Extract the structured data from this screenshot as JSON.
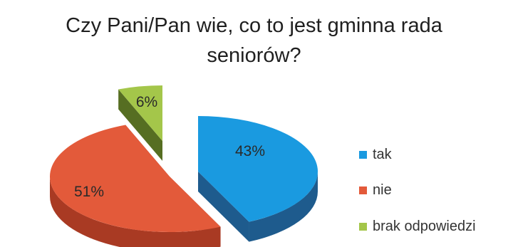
{
  "chart_data": {
    "type": "pie",
    "title": "Czy Pani/Pan wie, co to jest gminna rada seniorów?",
    "title_lines": [
      "Czy Pani/Pan wie, co to jest gminna rada",
      "seniorów?"
    ],
    "slices": [
      {
        "label": "tak",
        "value": 43,
        "display": "43%",
        "color": "#1a9ae0",
        "side_color": "#1e5b8d"
      },
      {
        "label": "nie",
        "value": 51,
        "display": "51%",
        "color": "#e35a3a",
        "side_color": "#a93a23"
      },
      {
        "label": "brak odpowiedzi",
        "value": 6,
        "display": "6%",
        "color": "#a4c64a",
        "side_color": "#566e22"
      }
    ],
    "legend_position": "right",
    "style": "3d-exploded"
  }
}
